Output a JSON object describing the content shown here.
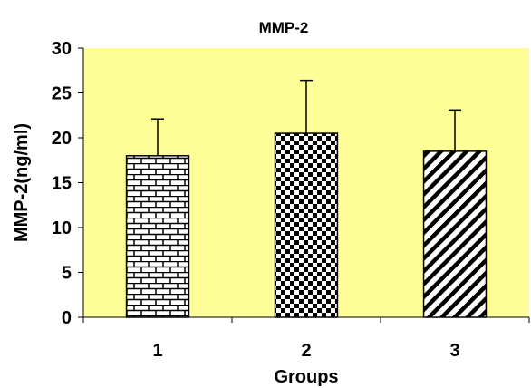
{
  "chart_data": {
    "type": "bar",
    "title": "MMP-2",
    "xlabel": "Groups",
    "ylabel": "MMP-2(ng/ml)",
    "ylim": [
      0,
      30
    ],
    "yticks": [
      0,
      5,
      10,
      15,
      20,
      25,
      30
    ],
    "categories": [
      "1",
      "2",
      "3"
    ],
    "values": [
      18.0,
      20.5,
      18.5
    ],
    "error_upper": [
      22.1,
      26.4,
      23.1
    ],
    "patterns": [
      "brick",
      "checkerboard",
      "diagonal-stripes"
    ],
    "grid": false,
    "legend": "none"
  },
  "colors": {
    "plot_background": "#ffff99",
    "bar_ink": "#000000",
    "bar_paper": "#ffffff"
  }
}
